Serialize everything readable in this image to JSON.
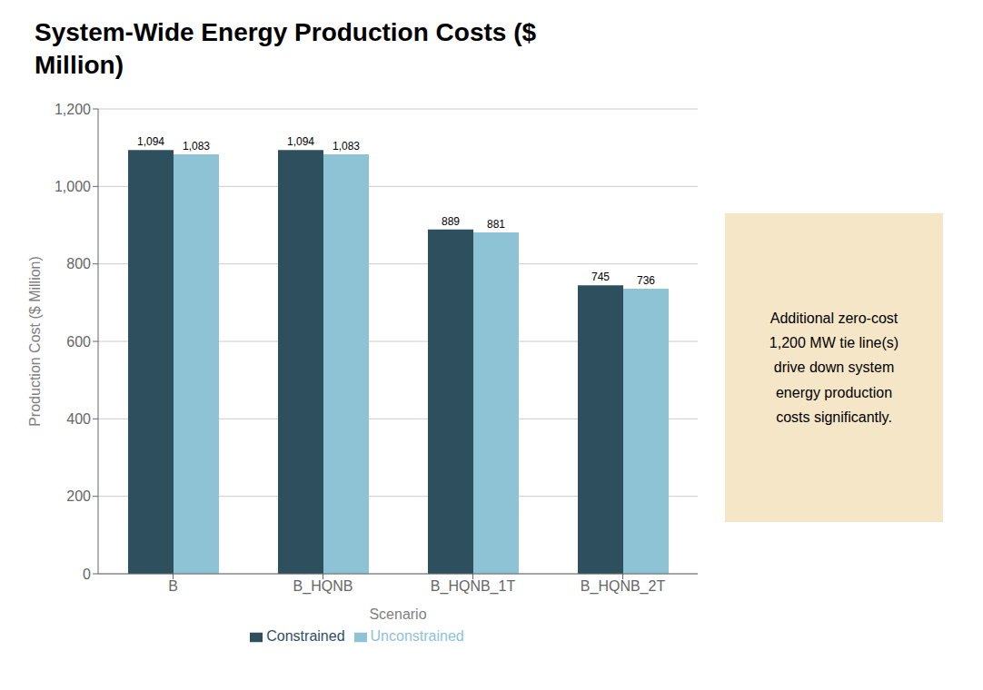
{
  "chart_data": {
    "type": "bar",
    "title": "System-Wide Energy Production Costs ($\nMillion)",
    "categories": [
      "B",
      "B_HQNB",
      "B_HQNB_1T",
      "B_HQNB_2T"
    ],
    "series": [
      {
        "name": "Constrained",
        "color": "#2e4f5e",
        "values": [
          1094,
          1094,
          889,
          745
        ],
        "value_labels": [
          "1,094",
          "1,094",
          "889",
          "745"
        ]
      },
      {
        "name": "Unconstrained",
        "color": "#8dc3d4",
        "values": [
          1083,
          1083,
          881,
          736
        ],
        "value_labels": [
          "1,083",
          "1,083",
          "881",
          "736"
        ]
      }
    ],
    "xlabel": "Scenario",
    "ylabel": "Production Cost ($ Million)",
    "ylim": [
      0,
      1200
    ],
    "yticks": [
      0,
      200,
      400,
      600,
      800,
      {
        "value": 1000,
        "label": "1,000"
      },
      {
        "value": 1200,
        "label": "1,200"
      }
    ],
    "grid": true,
    "legend": "bottom",
    "data_labels": true,
    "annotations": [
      {
        "text": "Additional zero-cost\n1,200 MW tie line(s)\ndrive down system\nenergy production\ncosts significantly.",
        "color": "#f5e6c8"
      }
    ]
  }
}
